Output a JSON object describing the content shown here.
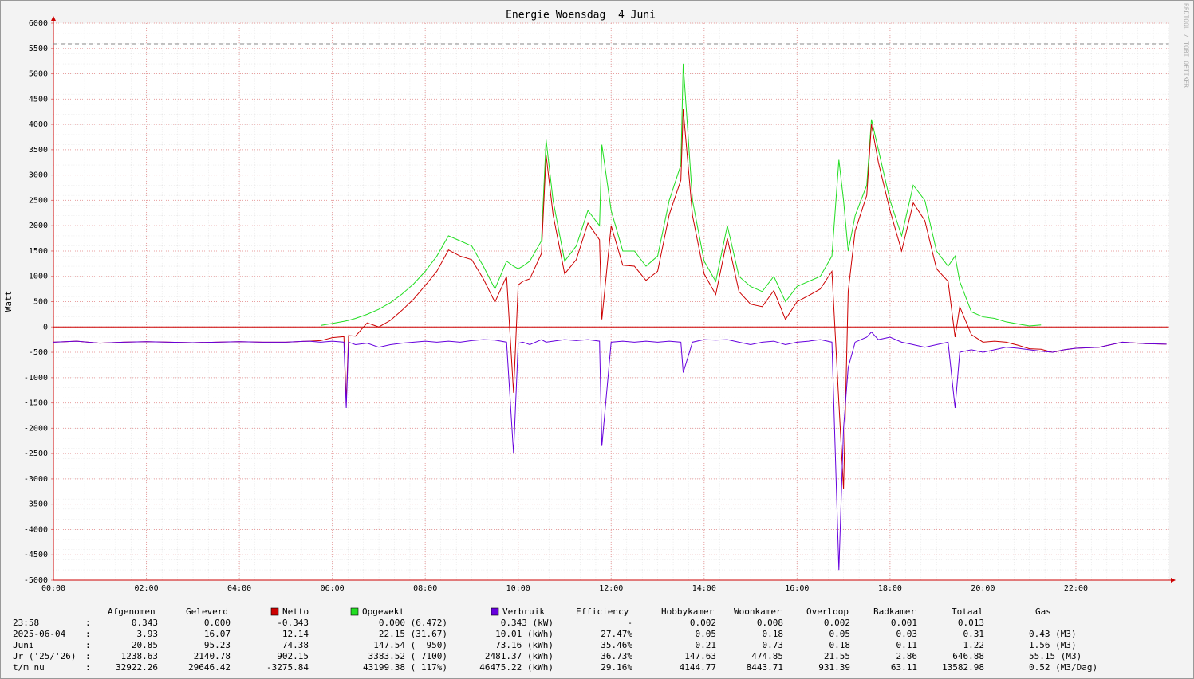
{
  "chart_data": {
    "type": "line",
    "title": "Energie Woensdag  4 Juni",
    "ylabel": "Watt",
    "credit": "RRDTOOL / TOBI OETIKER",
    "x": [
      0,
      0.5,
      1,
      1.5,
      2,
      2.5,
      3,
      3.5,
      4,
      4.5,
      5,
      5.5,
      5.75,
      6,
      6.25,
      6.3,
      6.35,
      6.5,
      6.75,
      7,
      7.25,
      7.5,
      7.75,
      8,
      8.25,
      8.5,
      8.75,
      9,
      9.25,
      9.5,
      9.75,
      9.9,
      10,
      10.1,
      10.25,
      10.5,
      10.6,
      10.75,
      11,
      11.25,
      11.5,
      11.75,
      11.8,
      12,
      12.25,
      12.5,
      12.75,
      13,
      13.25,
      13.5,
      13.55,
      13.75,
      14,
      14.25,
      14.5,
      14.75,
      15,
      15.25,
      15.5,
      15.75,
      16,
      16.25,
      16.5,
      16.75,
      16.9,
      17,
      17.1,
      17.25,
      17.5,
      17.6,
      17.75,
      18,
      18.25,
      18.5,
      18.75,
      19,
      19.25,
      19.4,
      19.5,
      19.75,
      20,
      20.25,
      20.5,
      20.75,
      21,
      21.25,
      21.5,
      21.75,
      22,
      22.5,
      23,
      23.5,
      23.95
    ],
    "series": [
      {
        "name": "Netto",
        "color": "#cc0000",
        "values": [
          -300,
          -280,
          -320,
          -300,
          -290,
          -300,
          -310,
          -300,
          -290,
          -300,
          -300,
          -280,
          -270,
          -210,
          -190,
          -1480,
          -170,
          -180,
          80,
          0,
          130,
          330,
          550,
          820,
          1100,
          1520,
          1400,
          1330,
          950,
          490,
          1000,
          -1300,
          830,
          900,
          950,
          1450,
          3400,
          2220,
          1050,
          1330,
          2050,
          1720,
          150,
          2000,
          1220,
          1200,
          920,
          1100,
          2220,
          2900,
          4300,
          2200,
          1050,
          640,
          1750,
          700,
          450,
          400,
          720,
          150,
          500,
          620,
          750,
          1100,
          -1500,
          -3200,
          700,
          1900,
          2600,
          4000,
          3250,
          2300,
          1500,
          2450,
          2100,
          1150,
          900,
          -200,
          400,
          -150,
          -300,
          -280,
          -300,
          -360,
          -430,
          -440,
          -500,
          -450,
          -420,
          -400,
          -300,
          -330,
          -340
        ]
      },
      {
        "name": "Opgewekt",
        "color": "#22dd22",
        "values": [
          null,
          null,
          null,
          null,
          null,
          null,
          null,
          null,
          null,
          null,
          null,
          null,
          30,
          70,
          110,
          120,
          130,
          170,
          250,
          350,
          480,
          650,
          850,
          1100,
          1400,
          1800,
          1700,
          1600,
          1200,
          750,
          1300,
          1200,
          1150,
          1200,
          1300,
          1700,
          3700,
          2500,
          1300,
          1600,
          2300,
          2000,
          3600,
          2300,
          1500,
          1500,
          1200,
          1400,
          2500,
          3200,
          5200,
          2500,
          1300,
          900,
          2000,
          1000,
          800,
          700,
          1000,
          500,
          800,
          900,
          1000,
          1400,
          3300,
          2500,
          1500,
          2200,
          2800,
          4100,
          3500,
          2500,
          1800,
          2800,
          2500,
          1500,
          1200,
          1400,
          900,
          300,
          200,
          170,
          100,
          60,
          20,
          40,
          null,
          null,
          null,
          null,
          null,
          null,
          null
        ]
      },
      {
        "name": "Verbruik",
        "color": "#6600dd",
        "values": [
          -300,
          -280,
          -320,
          -300,
          -290,
          -300,
          -310,
          -300,
          -290,
          -300,
          -300,
          -280,
          -300,
          -280,
          -300,
          -1600,
          -300,
          -350,
          -320,
          -400,
          -350,
          -320,
          -300,
          -280,
          -300,
          -280,
          -300,
          -270,
          -250,
          -260,
          -300,
          -2500,
          -320,
          -300,
          -350,
          -250,
          -300,
          -280,
          -250,
          -270,
          -250,
          -280,
          -2350,
          -300,
          -280,
          -300,
          -280,
          -300,
          -280,
          -300,
          -900,
          -300,
          -250,
          -260,
          -250,
          -300,
          -350,
          -300,
          -280,
          -350,
          -300,
          -280,
          -250,
          -300,
          -4800,
          -2000,
          -800,
          -300,
          -200,
          -100,
          -250,
          -200,
          -300,
          -350,
          -400,
          -350,
          -300,
          -1600,
          -500,
          -450,
          -500,
          -450,
          -400,
          -420,
          -450,
          -480,
          -500,
          -450,
          -420,
          -400,
          -300,
          -330,
          -340
        ]
      }
    ],
    "xlim": [
      0,
      24
    ],
    "xticks": [
      {
        "value": 0,
        "label": "00:00"
      },
      {
        "value": 2,
        "label": "02:00"
      },
      {
        "value": 4,
        "label": "04:00"
      },
      {
        "value": 6,
        "label": "06:00"
      },
      {
        "value": 8,
        "label": "08:00"
      },
      {
        "value": 10,
        "label": "10:00"
      },
      {
        "value": 12,
        "label": "12:00"
      },
      {
        "value": 14,
        "label": "14:00"
      },
      {
        "value": 16,
        "label": "16:00"
      },
      {
        "value": 18,
        "label": "18:00"
      },
      {
        "value": 20,
        "label": "20:00"
      },
      {
        "value": 22,
        "label": "22:00"
      }
    ],
    "ylim": [
      -5000,
      6000
    ],
    "yticks": [
      -5000,
      -4500,
      -4000,
      -3500,
      -3000,
      -2500,
      -2000,
      -1500,
      -1000,
      -500,
      0,
      500,
      1000,
      1500,
      2000,
      2500,
      3000,
      3500,
      4000,
      4500,
      5000,
      5500,
      6000
    ],
    "hline": 5590,
    "grid": true
  },
  "legend_table": {
    "headers_before": [
      "Afgenomen",
      "Geleverd"
    ],
    "headers_after": [
      "Efficiency",
      "Hobbykamer",
      "Woonkamer",
      "Overloop",
      "Badkamer",
      "Totaal",
      "Gas"
    ],
    "separator": ":",
    "rows": [
      {
        "label": "23:58",
        "cells": [
          "0.343",
          "0.000",
          "-0.343",
          "0.000 (6.472)",
          "0.343 (kW)",
          "-",
          "0.002",
          "0.008",
          "0.002",
          "0.001",
          "0.013"
        ]
      },
      {
        "label": "2025-06-04",
        "cells": [
          "3.93",
          "16.07",
          "12.14",
          "22.15 (31.67)",
          "10.01 (kWh)",
          "27.47%",
          "0.05",
          "0.18",
          "0.05",
          "0.03",
          "0.31",
          "0.43 (M3)"
        ]
      },
      {
        "label": "Juni",
        "cells": [
          "20.85",
          "95.23",
          "74.38",
          "147.54 (  950)",
          "73.16 (kWh)",
          "35.46%",
          "0.21",
          "0.73",
          "0.18",
          "0.11",
          "1.22",
          "1.56 (M3)"
        ]
      },
      {
        "label": "Jr ('25/'26)",
        "cells": [
          "1238.63",
          "2140.78",
          "902.15",
          "3383.52 ( 7100)",
          "2481.37 (kWh)",
          "36.73%",
          "147.63",
          "474.85",
          "21.55",
          "2.86",
          "646.88",
          "55.15 (M3)"
        ]
      },
      {
        "label": "t/m nu",
        "cells": [
          "32922.26",
          "29646.42",
          "-3275.84",
          "43199.38 ( 117%)",
          "46475.22 (kWh)",
          "29.16%",
          "4144.77",
          "8443.71",
          "931.39",
          "63.11",
          "13582.98",
          "0.52 (M3/Dag)"
        ]
      }
    ]
  }
}
